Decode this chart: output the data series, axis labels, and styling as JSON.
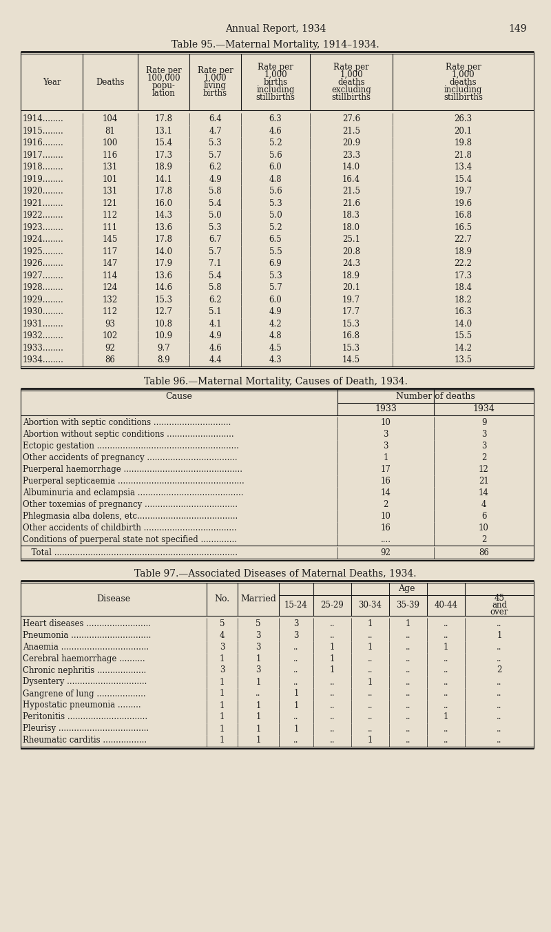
{
  "bg_color": "#e8e0d0",
  "text_color": "#1a1a1a",
  "page_header": "Annual Report, 1934",
  "page_number": "149",
  "table95_title": "Table 95.—Maternal Mortality, 1914–1934.",
  "table95_headers": [
    "Year",
    "Deaths",
    "Rate per\n100,000\npopu-\nlation",
    "Rate per\n1,000\nliving\nbirths",
    "Rate per\n1,000\nbirths\nincluding\nstillbirths",
    "Rate per\n1,000\ndeaths\nexcluding\nstillbirths",
    "Rate per\n1,000\ndeaths\nincluding\nstillbirths"
  ],
  "table95_data": [
    [
      "1914........",
      "104",
      "17.8",
      "6.4",
      "6.3",
      "27.6",
      "26.3"
    ],
    [
      "1915........",
      "81",
      "13.1",
      "4.7",
      "4.6",
      "21.5",
      "20.1"
    ],
    [
      "1916........",
      "100",
      "15.4",
      "5.3",
      "5.2",
      "20.9",
      "19.8"
    ],
    [
      "1917........",
      "116",
      "17.3",
      "5.7",
      "5.6",
      "23.3",
      "21.8"
    ],
    [
      "1918........",
      "131",
      "18.9",
      "6.2",
      "6.0",
      "14.0",
      "13.4"
    ],
    [
      "1919........",
      "101",
      "14.1",
      "4.9",
      "4.8",
      "16.4",
      "15.4"
    ],
    [
      "1920........",
      "131",
      "17.8",
      "5.8",
      "5.6",
      "21.5",
      "19.7"
    ],
    [
      "1921........",
      "121",
      "16.0",
      "5.4",
      "5.3",
      "21.6",
      "19.6"
    ],
    [
      "1922........",
      "112",
      "14.3",
      "5.0",
      "5.0",
      "18.3",
      "16.8"
    ],
    [
      "1923........",
      "111",
      "13.6",
      "5.3",
      "5.2",
      "18.0",
      "16.5"
    ],
    [
      "1924........",
      "145",
      "17.8",
      "6.7",
      "6.5",
      "25.1",
      "22.7"
    ],
    [
      "1925........",
      "117",
      "14.0",
      "5.7",
      "5.5",
      "20.8",
      "18.9"
    ],
    [
      "1926........",
      "147",
      "17.9",
      "7.1",
      "6.9",
      "24.3",
      "22.2"
    ],
    [
      "1927........",
      "114",
      "13.6",
      "5.4",
      "5.3",
      "18.9",
      "17.3"
    ],
    [
      "1928........",
      "124",
      "14.6",
      "5.8",
      "5.7",
      "20.1",
      "18.4"
    ],
    [
      "1929........",
      "132",
      "15.3",
      "6.2",
      "6.0",
      "19.7",
      "18.2"
    ],
    [
      "1930........",
      "112",
      "12.7",
      "5.1",
      "4.9",
      "17.7",
      "16.3"
    ],
    [
      "1931........",
      "93",
      "10.8",
      "4.1",
      "4.2",
      "15.3",
      "14.0"
    ],
    [
      "1932........",
      "102",
      "10.9",
      "4.9",
      "4.8",
      "16.8",
      "15.5"
    ],
    [
      "1933........",
      "92",
      "9.7",
      "4.6",
      "4.5",
      "15.3",
      "14.2"
    ],
    [
      "1934........",
      "86",
      "8.9",
      "4.4",
      "4.3",
      "14.5",
      "13.5"
    ]
  ],
  "table96_title": "Table 96.—Maternal Mortality, Causes of Death, 1934.",
  "table96_col_headers": [
    "Cause",
    "1933",
    "1934"
  ],
  "table96_group_header": "Number of deaths",
  "table96_data": [
    [
      "Abortion with septic conditions ..............................",
      "10",
      "9"
    ],
    [
      "Abortion without septic conditions ..........................",
      "3",
      "3"
    ],
    [
      "Ectopic gestation .......................................................",
      "3",
      "3"
    ],
    [
      "Other accidents of pregnancy ...................................",
      "1",
      "2"
    ],
    [
      "Puerperal haemorrhage ..............................................",
      "17",
      "12"
    ],
    [
      "Puerperal septicaemia .................................................",
      "16",
      "21"
    ],
    [
      "Albuminuria and eclampsia .........................................",
      "14",
      "14"
    ],
    [
      "Other toxemias of pregnancy ....................................",
      "2",
      "4"
    ],
    [
      "Phlegmasia alba dolens, etc.......................................",
      "10",
      "6"
    ],
    [
      "Other accidents of childbirth ....................................",
      "16",
      "10"
    ],
    [
      "Conditions of puerperal state not specified ..............",
      "....",
      "2"
    ]
  ],
  "table96_total": [
    "Total .......................................................................",
    "92",
    "86"
  ],
  "table97_title": "Table 97.—Associated Diseases of Maternal Deaths, 1934.",
  "table97_col_headers": [
    "Disease",
    "No.",
    "Married",
    "15-24",
    "25-29",
    "30-34",
    "35-39",
    "40-44",
    "45\nand\nover"
  ],
  "table97_data": [
    [
      "Heart diseases .........................",
      "5",
      "5",
      "3",
      "..",
      "1",
      "1",
      "..",
      ".."
    ],
    [
      "Pneumonia ...............................",
      "4",
      "3",
      "3",
      "..",
      "..",
      "..",
      "..",
      "1"
    ],
    [
      "Anaemia ..................................",
      "3",
      "3",
      "..",
      "1",
      "1",
      "..",
      "1",
      ".."
    ],
    [
      "Cerebral haemorrhage ..........",
      "1",
      "1",
      "..",
      "1",
      "..",
      "..",
      "..",
      ".."
    ],
    [
      "Chronic nephritis ...................",
      "3",
      "3",
      "..",
      "1",
      "..",
      "..",
      "..",
      "2"
    ],
    [
      "Dysentery ...............................",
      "1",
      "1",
      "..",
      "..",
      "1",
      "..",
      "..",
      ".."
    ],
    [
      "Gangrene of lung ...................",
      "1",
      "..",
      "1",
      "..",
      "..",
      "..",
      "..",
      ".."
    ],
    [
      "Hypostatic pneumonia .........",
      "1",
      "1",
      "1",
      "..",
      "..",
      "..",
      "..",
      ".."
    ],
    [
      "Peritonitis ...............................",
      "1",
      "1",
      "..",
      "..",
      "..",
      "..",
      "1",
      ".."
    ],
    [
      "Pleurisy ...................................",
      "1",
      "1",
      "1",
      "..",
      "..",
      "..",
      "..",
      ".."
    ],
    [
      "Rheumatic carditis .................",
      "1",
      "1",
      "..",
      "..",
      "1",
      "..",
      "..",
      ".."
    ]
  ]
}
